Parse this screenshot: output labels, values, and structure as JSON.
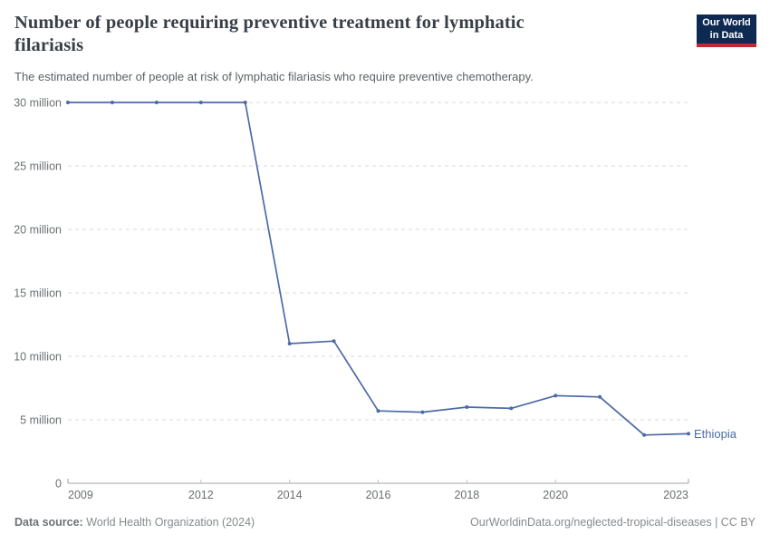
{
  "header": {
    "title": "Number of people requiring preventive treatment for lymphatic filariasis",
    "subtitle": "The estimated number of people at risk of lymphatic filariasis who require preventive chemotherapy.",
    "logo": {
      "line1": "Our World",
      "line2": "in Data"
    }
  },
  "chart_data": {
    "type": "line",
    "title": "Number of people requiring preventive treatment for lymphatic filariasis",
    "xlabel": "",
    "ylabel": "",
    "xlim": [
      2009,
      2023
    ],
    "ylim": [
      0,
      30000000
    ],
    "grid": "horizontal-dashed",
    "legend_position": "end-of-line-label",
    "x": [
      2009,
      2010,
      2011,
      2012,
      2013,
      2014,
      2015,
      2016,
      2017,
      2018,
      2019,
      2020,
      2021,
      2022,
      2023
    ],
    "series": [
      {
        "name": "Ethiopia",
        "color": "#4c6ba6",
        "values": [
          30000000,
          30000000,
          30000000,
          30000000,
          30000000,
          11000000,
          11200000,
          5700000,
          5600000,
          6000000,
          5900000,
          6900000,
          6800000,
          3800000,
          3900000
        ]
      }
    ],
    "x_ticks": [
      {
        "value": 2009,
        "label": "2009"
      },
      {
        "value": 2012,
        "label": "2012"
      },
      {
        "value": 2014,
        "label": "2014"
      },
      {
        "value": 2016,
        "label": "2016"
      },
      {
        "value": 2018,
        "label": "2018"
      },
      {
        "value": 2020,
        "label": "2020"
      },
      {
        "value": 2023,
        "label": "2023"
      }
    ],
    "y_ticks": [
      {
        "value": 0,
        "label": "0"
      },
      {
        "value": 5000000,
        "label": "5 million"
      },
      {
        "value": 10000000,
        "label": "10 million"
      },
      {
        "value": 15000000,
        "label": "15 million"
      },
      {
        "value": 20000000,
        "label": "20 million"
      },
      {
        "value": 25000000,
        "label": "25 million"
      },
      {
        "value": 30000000,
        "label": "30 million"
      }
    ]
  },
  "footer": {
    "source_label": "Data source:",
    "source_value": " World Health Organization (2024)",
    "credit": "OurWorldinData.org/neglected-tropical-diseases | CC BY"
  },
  "colors": {
    "line": "#4c6ba6",
    "logo_bg": "#0e2a52",
    "logo_stripe": "#bd2a31",
    "grid": "#d9d9d9",
    "axis": "#a3a3a3",
    "tick": "#c4c4c4",
    "axis_text": "#6b6f72"
  }
}
